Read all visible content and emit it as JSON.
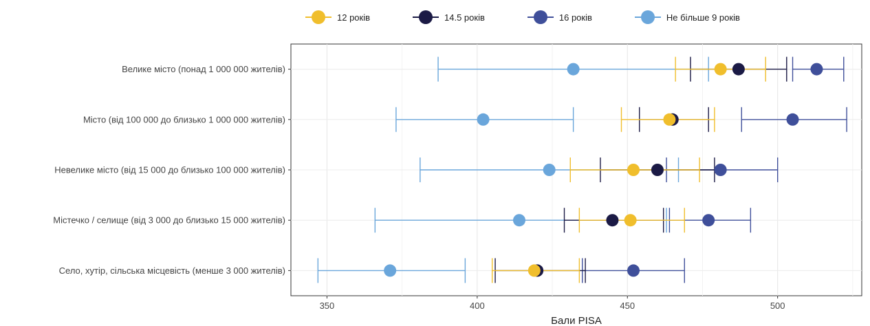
{
  "chart_data": {
    "type": "scatter",
    "subtype": "dot-with-error-bars",
    "title": "",
    "xlabel": "Бали PISA",
    "ylabel": "",
    "xlim": [
      338,
      528
    ],
    "xticks": [
      350,
      400,
      450,
      500
    ],
    "grid": true,
    "legend_position": "top",
    "categories": [
      "Велике місто (понад 1 000 000 жителів)",
      "Місто (від 100 000 до близько 1 000 000 жителів)",
      "Невелике місто (від 15 000 до близько 100 000 жителів)",
      "Містечко / селище (від 3 000 до близько 15 000 жителів)",
      "Село, хутір, сільська місцевість (менше 3 000 жителів)"
    ],
    "series": [
      {
        "name": "12 років",
        "color": "#f0be2c",
        "values": [
          481,
          464,
          452,
          451,
          419
        ],
        "lower": [
          466,
          448,
          431,
          434,
          405
        ],
        "upper": [
          496,
          479,
          474,
          469,
          434
        ]
      },
      {
        "name": "14.5 років",
        "color": "#1b1a45",
        "values": [
          487,
          465,
          460,
          445,
          420
        ],
        "lower": [
          471,
          454,
          441,
          429,
          406
        ],
        "upper": [
          503,
          477,
          479,
          462,
          436
        ]
      },
      {
        "name": "16 років",
        "color": "#3f4f9a",
        "values": [
          513,
          505,
          481,
          477,
          452
        ],
        "lower": [
          505,
          488,
          463,
          464,
          435
        ],
        "upper": [
          522,
          523,
          500,
          491,
          469
        ]
      },
      {
        "name": "Не більше 9 років",
        "color": "#6aa6db",
        "values": [
          432,
          402,
          424,
          414,
          371
        ],
        "lower": [
          387,
          373,
          381,
          366,
          347
        ],
        "upper": [
          477,
          432,
          467,
          463,
          396
        ]
      }
    ]
  }
}
